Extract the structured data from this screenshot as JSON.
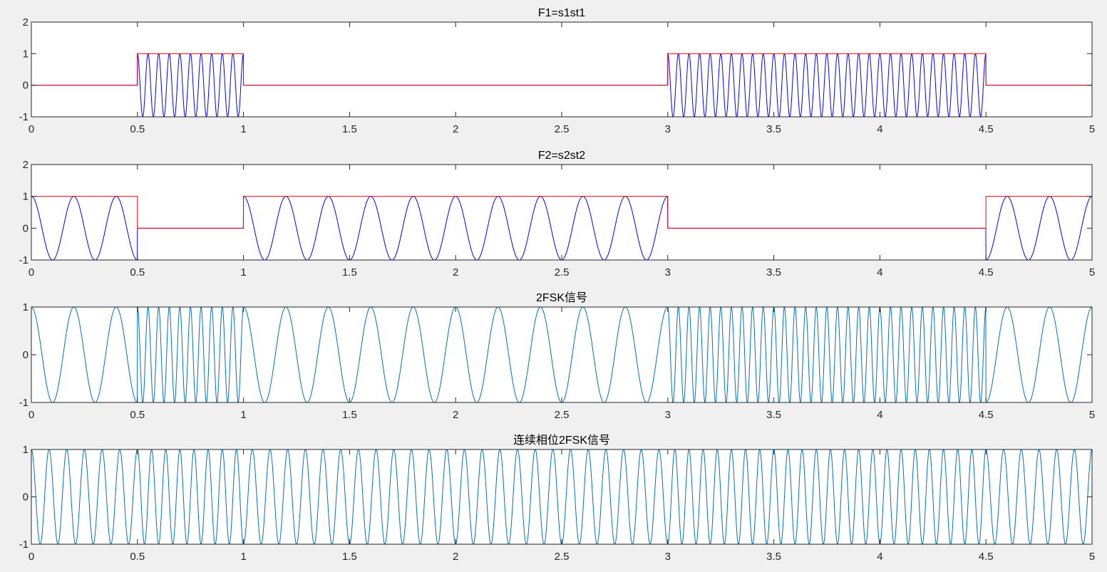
{
  "figure": {
    "background": "#f0f0f0",
    "axes_color": "#262626"
  },
  "chart_data": [
    {
      "type": "line",
      "title": "F1=s1st1",
      "xlabel": "",
      "ylabel": "",
      "xlim": [
        0,
        5
      ],
      "ylim": [
        -1,
        2
      ],
      "xticks": [
        0,
        0.5,
        1,
        1.5,
        2,
        2.5,
        3,
        3.5,
        4,
        4.5,
        5
      ],
      "xtick_labels": [
        "0",
        "0.5",
        "1",
        "1.5",
        "2",
        "2.5",
        "3",
        "3.5",
        "4",
        "4.5",
        "5"
      ],
      "yticks": [
        -1,
        0,
        1,
        2
      ],
      "ytick_labels": [
        "-1",
        "0",
        "1",
        "2"
      ],
      "bits": [
        0,
        1,
        0,
        0,
        0,
        0,
        1,
        1,
        1,
        0
      ],
      "bit_duration": 0.5,
      "series": [
        {
          "kind": "gate",
          "color": "#ff0000",
          "bits": [
            0,
            1,
            0,
            0,
            0,
            0,
            1,
            1,
            1,
            0
          ]
        },
        {
          "kind": "gated-cosine",
          "color": "#0000ff",
          "frequency": 20,
          "bits": [
            0,
            1,
            0,
            0,
            0,
            0,
            1,
            1,
            1,
            0
          ]
        }
      ]
    },
    {
      "type": "line",
      "title": "F2=s2st2",
      "xlabel": "",
      "ylabel": "",
      "xlim": [
        0,
        5
      ],
      "ylim": [
        -1,
        2
      ],
      "xticks": [
        0,
        0.5,
        1,
        1.5,
        2,
        2.5,
        3,
        3.5,
        4,
        4.5,
        5
      ],
      "xtick_labels": [
        "0",
        "0.5",
        "1",
        "1.5",
        "2",
        "2.5",
        "3",
        "3.5",
        "4",
        "4.5",
        "5"
      ],
      "yticks": [
        -1,
        0,
        1,
        2
      ],
      "ytick_labels": [
        "-1",
        "0",
        "1",
        "2"
      ],
      "bits": [
        1,
        0,
        1,
        1,
        1,
        1,
        0,
        0,
        0,
        1
      ],
      "bit_duration": 0.5,
      "series": [
        {
          "kind": "gate",
          "color": "#ff0000",
          "bits": [
            1,
            0,
            1,
            1,
            1,
            1,
            0,
            0,
            0,
            1
          ]
        },
        {
          "kind": "gated-cosine",
          "color": "#0000ff",
          "frequency": 5,
          "bits": [
            1,
            0,
            1,
            1,
            1,
            1,
            0,
            0,
            0,
            1
          ]
        }
      ]
    },
    {
      "type": "line",
      "title": "2FSK信号",
      "xlabel": "",
      "ylabel": "",
      "xlim": [
        0,
        5
      ],
      "ylim": [
        -1,
        1
      ],
      "xticks": [
        0,
        0.5,
        1,
        1.5,
        2,
        2.5,
        3,
        3.5,
        4,
        4.5,
        5
      ],
      "xtick_labels": [
        "0",
        "0.5",
        "1",
        "1.5",
        "2",
        "2.5",
        "3",
        "3.5",
        "4",
        "4.5",
        "5"
      ],
      "yticks": [
        -1,
        0,
        1
      ],
      "ytick_labels": [
        "-1",
        "0",
        "1"
      ],
      "bits": [
        0,
        1,
        0,
        0,
        0,
        0,
        1,
        1,
        1,
        0
      ],
      "bit_duration": 0.5,
      "series": [
        {
          "kind": "fsk",
          "color": "#0072bd",
          "frequency_high": 20,
          "frequency_low": 5,
          "bits": [
            0,
            1,
            0,
            0,
            0,
            0,
            1,
            1,
            1,
            0
          ]
        }
      ]
    },
    {
      "type": "line",
      "title": "连续相位2FSK信号",
      "xlabel": "",
      "ylabel": "",
      "xlim": [
        0,
        5
      ],
      "ylim": [
        -1,
        1
      ],
      "xticks": [
        0,
        0.5,
        1,
        1.5,
        2,
        2.5,
        3,
        3.5,
        4,
        4.5,
        5
      ],
      "xtick_labels": [
        "0",
        "0.5",
        "1",
        "1.5",
        "2",
        "2.5",
        "3",
        "3.5",
        "4",
        "4.5",
        "5"
      ],
      "yticks": [
        -1,
        0,
        1
      ],
      "ytick_labels": [
        "-1",
        "0",
        "1"
      ],
      "bits": [
        0,
        1,
        0,
        0,
        0,
        0,
        1,
        1,
        1,
        0
      ],
      "bit_duration": 0.5,
      "series": [
        {
          "kind": "cpfsk",
          "color": "#0072bd",
          "frequency_high": 15,
          "frequency_low": 12,
          "bits": [
            0,
            1,
            0,
            0,
            0,
            0,
            1,
            1,
            1,
            0
          ]
        }
      ]
    }
  ]
}
